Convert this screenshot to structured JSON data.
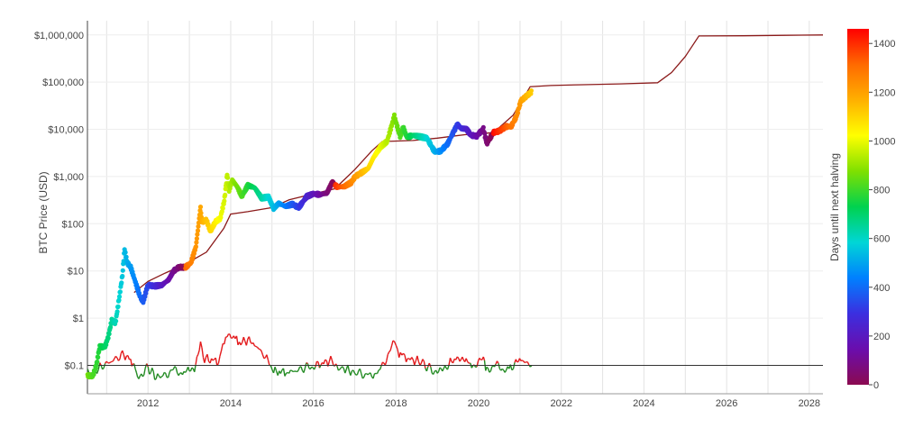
{
  "chart_data": {
    "type": "scatter",
    "title": "",
    "ylabel": "BTC Price (USD)",
    "xlabel": "",
    "y_scale": "log",
    "ylim": [
      0.025,
      2000000
    ],
    "xlim": [
      "2010-07-15",
      "2028-05-01"
    ],
    "x_ticks": [
      "2012",
      "2014",
      "2016",
      "2018",
      "2020",
      "2022",
      "2024",
      "2026",
      "2028"
    ],
    "y_ticks": [
      {
        "value": 0.1,
        "label": "$0.1"
      },
      {
        "value": 1,
        "label": "$1"
      },
      {
        "value": 10,
        "label": "$10"
      },
      {
        "value": 100,
        "label": "$100"
      },
      {
        "value": 1000,
        "label": "$1,000"
      },
      {
        "value": 10000,
        "label": "$10,000"
      },
      {
        "value": 100000,
        "label": "$100,000"
      },
      {
        "value": 1000000,
        "label": "$1,000,000"
      }
    ],
    "grid": true,
    "colorbar": {
      "title": "Days until next halving",
      "range": [
        0,
        1460
      ],
      "ticks": [
        "0",
        "200",
        "400",
        "600",
        "800",
        "1000",
        "1200",
        "1400"
      ],
      "colors": [
        "#8b0a50",
        "#6a0dad",
        "#3b2fe0",
        "#0080ff",
        "#00d6d6",
        "#00d24f",
        "#7fe000",
        "#ffff00",
        "#ffb000",
        "#ff6a00",
        "#ff0000"
      ]
    },
    "halvings": [
      "2012-11-28",
      "2016-07-09",
      "2020-05-11",
      "2024-05-01"
    ],
    "price_series": [
      [
        "2010-07-17",
        0.06
      ],
      [
        "2010-09-01",
        0.06
      ],
      [
        "2010-10-01",
        0.1
      ],
      [
        "2010-11-01",
        0.25
      ],
      [
        "2010-12-15",
        0.24
      ],
      [
        "2011-01-15",
        0.4
      ],
      [
        "2011-02-15",
        0.9
      ],
      [
        "2011-03-20",
        0.8
      ],
      [
        "2011-04-20",
        2.5
      ],
      [
        "2011-05-20",
        8
      ],
      [
        "2011-06-08",
        29
      ],
      [
        "2011-07-01",
        15
      ],
      [
        "2011-08-01",
        12
      ],
      [
        "2011-09-10",
        6
      ],
      [
        "2011-10-20",
        3
      ],
      [
        "2011-11-20",
        2.2
      ],
      [
        "2011-12-30",
        5
      ],
      [
        "2012-03-01",
        4.8
      ],
      [
        "2012-05-01",
        5
      ],
      [
        "2012-07-01",
        6.5
      ],
      [
        "2012-08-15",
        10
      ],
      [
        "2012-10-01",
        12
      ],
      [
        "2012-11-28",
        12
      ],
      [
        "2013-01-15",
        15
      ],
      [
        "2013-02-28",
        33
      ],
      [
        "2013-04-10",
        230
      ],
      [
        "2013-04-20",
        110
      ],
      [
        "2013-06-01",
        120
      ],
      [
        "2013-07-05",
        70
      ],
      [
        "2013-08-20",
        110
      ],
      [
        "2013-10-01",
        130
      ],
      [
        "2013-11-05",
        300
      ],
      [
        "2013-12-01",
        1100
      ],
      [
        "2013-12-18",
        520
      ],
      [
        "2014-01-15",
        850
      ],
      [
        "2014-03-01",
        600
      ],
      [
        "2014-04-10",
        380
      ],
      [
        "2014-06-01",
        650
      ],
      [
        "2014-08-01",
        580
      ],
      [
        "2014-10-01",
        350
      ],
      [
        "2014-12-01",
        370
      ],
      [
        "2015-01-15",
        210
      ],
      [
        "2015-03-01",
        270
      ],
      [
        "2015-05-01",
        235
      ],
      [
        "2015-07-01",
        260
      ],
      [
        "2015-08-25",
        220
      ],
      [
        "2015-11-05",
        380
      ],
      [
        "2016-01-01",
        430
      ],
      [
        "2016-03-01",
        415
      ],
      [
        "2016-05-01",
        450
      ],
      [
        "2016-06-15",
        750
      ],
      [
        "2016-08-01",
        600
      ],
      [
        "2016-10-01",
        615
      ],
      [
        "2016-12-01",
        750
      ],
      [
        "2017-01-05",
        1000
      ],
      [
        "2017-03-01",
        1200
      ],
      [
        "2017-05-01",
        1500
      ],
      [
        "2017-06-15",
        2500
      ],
      [
        "2017-08-15",
        4200
      ],
      [
        "2017-10-15",
        5600
      ],
      [
        "2017-12-17",
        19000
      ],
      [
        "2018-02-06",
        7000
      ],
      [
        "2018-03-05",
        11000
      ],
      [
        "2018-04-06",
        6800
      ],
      [
        "2018-06-01",
        7500
      ],
      [
        "2018-08-01",
        7000
      ],
      [
        "2018-10-01",
        6500
      ],
      [
        "2018-11-25",
        3800
      ],
      [
        "2018-12-15",
        3300
      ],
      [
        "2019-02-01",
        3500
      ],
      [
        "2019-04-01",
        4900
      ],
      [
        "2019-05-15",
        8000
      ],
      [
        "2019-06-26",
        12500
      ],
      [
        "2019-08-01",
        10500
      ],
      [
        "2019-09-15",
        10200
      ],
      [
        "2019-10-25",
        7500
      ],
      [
        "2019-12-15",
        7200
      ],
      [
        "2020-02-12",
        10300
      ],
      [
        "2020-03-13",
        5000
      ],
      [
        "2020-05-11",
        8600
      ],
      [
        "2020-07-01",
        9200
      ],
      [
        "2020-09-01",
        11500
      ],
      [
        "2020-10-15",
        11500
      ],
      [
        "2020-12-01",
        19000
      ],
      [
        "2021-01-08",
        40000
      ],
      [
        "2021-02-15",
        48000
      ],
      [
        "2021-04-14",
        63000
      ]
    ],
    "model_series": [
      [
        "2011-09-01",
        3.5
      ],
      [
        "2012-01-01",
        6
      ],
      [
        "2012-06-01",
        9
      ],
      [
        "2012-11-28",
        14
      ],
      [
        "2013-06-01",
        25
      ],
      [
        "2013-11-01",
        80
      ],
      [
        "2014-01-01",
        160
      ],
      [
        "2014-06-01",
        180
      ],
      [
        "2015-01-01",
        220
      ],
      [
        "2015-06-01",
        320
      ],
      [
        "2016-01-01",
        430
      ],
      [
        "2016-07-09",
        550
      ],
      [
        "2017-01-01",
        1400
      ],
      [
        "2017-06-01",
        3500
      ],
      [
        "2017-09-01",
        5500
      ],
      [
        "2018-06-01",
        5800
      ],
      [
        "2019-01-01",
        6500
      ],
      [
        "2019-09-01",
        7700
      ],
      [
        "2020-05-11",
        8500
      ],
      [
        "2020-11-01",
        20000
      ],
      [
        "2021-04-01",
        80000
      ],
      [
        "2021-10-01",
        85000
      ],
      [
        "2022-06-01",
        88000
      ],
      [
        "2023-06-01",
        92000
      ],
      [
        "2024-05-01",
        97000
      ],
      [
        "2024-09-01",
        160000
      ],
      [
        "2025-01-01",
        350000
      ],
      [
        "2025-05-01",
        950000
      ],
      [
        "2026-06-01",
        960000
      ],
      [
        "2027-06-01",
        980000
      ],
      [
        "2028-05-01",
        1000000
      ]
    ],
    "ratio_series": [
      [
        "2010-07-17",
        0.065
      ],
      [
        "2010-09-01",
        0.06
      ],
      [
        "2010-11-01",
        0.09
      ],
      [
        "2011-06-01",
        0.17
      ],
      [
        "2011-08-01",
        0.13
      ],
      [
        "2011-09-01",
        0.1
      ],
      [
        "2011-10-01",
        0.06
      ],
      [
        "2011-11-15",
        0.07
      ],
      [
        "2012-01-01",
        0.09
      ],
      [
        "2012-03-01",
        0.06
      ],
      [
        "2012-05-01",
        0.055
      ],
      [
        "2012-08-01",
        0.08
      ],
      [
        "2012-11-01",
        0.07
      ],
      [
        "2013-01-01",
        0.08
      ],
      [
        "2013-02-15",
        0.09
      ],
      [
        "2013-04-10",
        0.25
      ],
      [
        "2013-05-15",
        0.14
      ],
      [
        "2013-07-15",
        0.13
      ],
      [
        "2013-09-15",
        0.12
      ],
      [
        "2013-12-01",
        0.5
      ],
      [
        "2014-01-15",
        0.4
      ],
      [
        "2014-04-01",
        0.3
      ],
      [
        "2014-06-01",
        0.35
      ],
      [
        "2014-08-01",
        0.28
      ],
      [
        "2014-11-15",
        0.14
      ],
      [
        "2015-01-15",
        0.075
      ],
      [
        "2015-06-01",
        0.07
      ],
      [
        "2015-11-01",
        0.09
      ],
      [
        "2016-02-01",
        0.1
      ],
      [
        "2016-06-15",
        0.13
      ],
      [
        "2016-09-01",
        0.09
      ],
      [
        "2017-01-01",
        0.07
      ],
      [
        "2017-06-01",
        0.06
      ],
      [
        "2017-08-01",
        0.07
      ],
      [
        "2017-12-17",
        0.3
      ],
      [
        "2018-01-15",
        0.2
      ],
      [
        "2018-04-01",
        0.14
      ],
      [
        "2018-08-01",
        0.12
      ],
      [
        "2018-11-15",
        0.08
      ],
      [
        "2019-01-01",
        0.065
      ],
      [
        "2019-04-01",
        0.1
      ],
      [
        "2019-06-26",
        0.15
      ],
      [
        "2019-09-01",
        0.13
      ],
      [
        "2019-11-01",
        0.1
      ],
      [
        "2020-02-12",
        0.13
      ],
      [
        "2020-03-13",
        0.085
      ],
      [
        "2020-06-01",
        0.1
      ],
      [
        "2020-09-01",
        0.08
      ],
      [
        "2020-11-15",
        0.1
      ],
      [
        "2021-01-08",
        0.13
      ],
      [
        "2021-04-14",
        0.1
      ]
    ],
    "reference_line": 0.1,
    "ratio_threshold_colors": {
      "above": "#e31a1c",
      "below": "#238b23"
    }
  }
}
